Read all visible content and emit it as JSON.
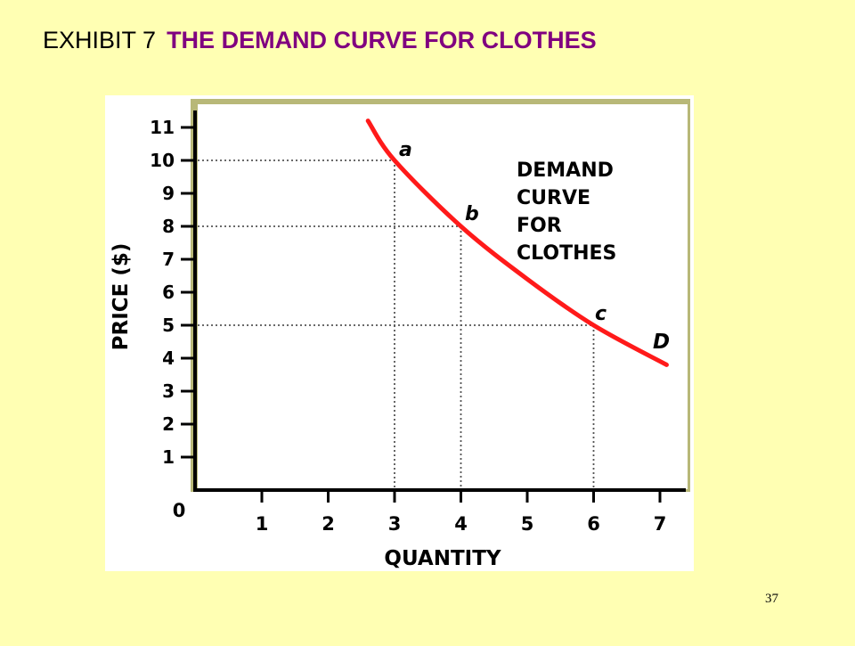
{
  "slide": {
    "exhibit_label": "EXHIBIT 7",
    "title": "THE DEMAND CURVE FOR CLOTHES",
    "page_number": "37"
  },
  "colors": {
    "background": "#FFFFB3",
    "title_accent": "#800080",
    "curve": "#FF1A1A",
    "frame": "#B8B878",
    "plot_background": "#FFFFFF"
  },
  "chart_data": {
    "type": "line",
    "xlabel": "QUANTITY",
    "ylabel": "PRICE ($)",
    "xlim": [
      0,
      7
    ],
    "ylim": [
      0,
      11
    ],
    "x_ticks": [
      "1",
      "2",
      "3",
      "4",
      "5",
      "6",
      "7"
    ],
    "y_ticks": [
      "1",
      "2",
      "3",
      "4",
      "5",
      "6",
      "7",
      "8",
      "9",
      "10",
      "11"
    ],
    "origin_label": "0",
    "series": [
      {
        "name": "D",
        "x": [
          2.6,
          3,
          4,
          5,
          6,
          7.1
        ],
        "y": [
          11.2,
          10,
          8,
          6.4,
          5,
          3.8
        ]
      }
    ],
    "points": [
      {
        "label": "a",
        "x": 3,
        "y": 10
      },
      {
        "label": "b",
        "x": 4,
        "y": 8
      },
      {
        "label": "c",
        "x": 6,
        "y": 5
      }
    ],
    "annotation": [
      "DEMAND",
      "CURVE",
      "FOR",
      "CLOTHES"
    ],
    "grid": false
  }
}
